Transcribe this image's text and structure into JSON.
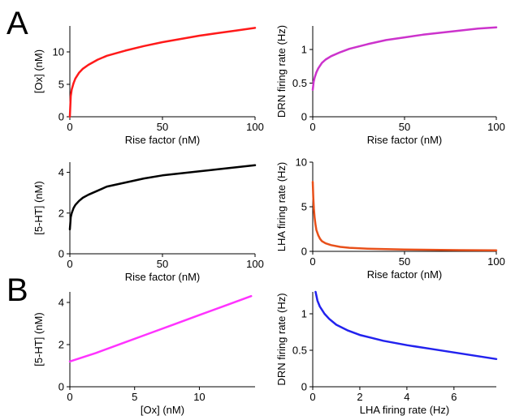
{
  "panel_labels": {
    "a": "A",
    "b": "B"
  },
  "chart_data": [
    {
      "type": "line",
      "panel": "A",
      "xlabel": "Rise factor (nM)",
      "ylabel": "[Ox] (nM)",
      "xlim": [
        0,
        100
      ],
      "ylim": [
        0,
        14
      ],
      "xticks": [
        0,
        50,
        100
      ],
      "yticks": [
        0,
        5,
        10
      ],
      "color": "#ff1a1a",
      "series": [
        {
          "x": [
            0,
            0.5,
            1,
            2,
            3,
            5,
            7,
            10,
            15,
            20,
            30,
            40,
            50,
            60,
            70,
            80,
            90,
            100
          ],
          "y": [
            0,
            3.2,
            4.2,
            5.2,
            5.9,
            6.8,
            7.4,
            8.0,
            8.8,
            9.4,
            10.2,
            10.9,
            11.5,
            12.0,
            12.5,
            12.9,
            13.3,
            13.7
          ]
        }
      ]
    },
    {
      "type": "line",
      "panel": "A",
      "xlabel": "Rise factor (nM)",
      "ylabel": "DRN firing rate (Hz)",
      "xlim": [
        0,
        100
      ],
      "ylim": [
        0,
        1.35
      ],
      "xticks": [
        0,
        50,
        100
      ],
      "yticks": [
        0,
        0.5,
        1
      ],
      "color": "#cc33cc",
      "series": [
        {
          "x": [
            0,
            0.5,
            1,
            2,
            3,
            5,
            7,
            10,
            15,
            20,
            30,
            40,
            50,
            60,
            70,
            80,
            90,
            100
          ],
          "y": [
            0.4,
            0.52,
            0.58,
            0.66,
            0.72,
            0.8,
            0.85,
            0.9,
            0.96,
            1.01,
            1.08,
            1.14,
            1.18,
            1.22,
            1.25,
            1.28,
            1.31,
            1.33
          ]
        }
      ]
    },
    {
      "type": "line",
      "panel": "A",
      "xlabel": "Rise factor (nM)",
      "ylabel": "[5-HT] (nM)",
      "xlim": [
        0,
        100
      ],
      "ylim": [
        0,
        4.5
      ],
      "xticks": [
        0,
        50,
        100
      ],
      "yticks": [
        0,
        2,
        4
      ],
      "color": "#000000",
      "series": [
        {
          "x": [
            0,
            0.5,
            1,
            2,
            3,
            5,
            7,
            10,
            15,
            20,
            30,
            40,
            50,
            60,
            70,
            80,
            90,
            100
          ],
          "y": [
            1.2,
            1.8,
            2.0,
            2.25,
            2.4,
            2.6,
            2.75,
            2.9,
            3.1,
            3.3,
            3.5,
            3.7,
            3.85,
            3.95,
            4.05,
            4.15,
            4.25,
            4.35
          ]
        }
      ]
    },
    {
      "type": "line",
      "panel": "A",
      "xlabel": "Rise factor (nM)",
      "ylabel": "LHA firing rate (Hz)",
      "xlim": [
        0,
        100
      ],
      "ylim": [
        0,
        10
      ],
      "xticks": [
        0,
        50,
        100
      ],
      "yticks": [
        0,
        5,
        10
      ],
      "color": "#e8501a",
      "series": [
        {
          "x": [
            0,
            0.3,
            0.6,
            1,
            1.5,
            2,
            3,
            4,
            5,
            7,
            10,
            15,
            20,
            30,
            40,
            50,
            60,
            70,
            80,
            90,
            100
          ],
          "y": [
            7.8,
            6.0,
            4.8,
            3.8,
            3.0,
            2.4,
            1.8,
            1.4,
            1.15,
            0.9,
            0.7,
            0.5,
            0.4,
            0.3,
            0.25,
            0.2,
            0.18,
            0.16,
            0.14,
            0.13,
            0.12
          ]
        }
      ]
    },
    {
      "type": "line",
      "panel": "B",
      "xlabel": "[Ox] (nM)",
      "ylabel": "[5-HT] (nM)",
      "xlim": [
        0,
        14.3
      ],
      "ylim": [
        0,
        4.5
      ],
      "xticks": [
        0,
        5,
        10
      ],
      "yticks": [
        0,
        2,
        4
      ],
      "color": "#ff33ff",
      "series": [
        {
          "x": [
            0,
            2,
            4,
            6,
            8,
            10,
            12,
            14
          ],
          "y": [
            1.2,
            1.6,
            2.05,
            2.5,
            2.95,
            3.4,
            3.85,
            4.3
          ]
        }
      ]
    },
    {
      "type": "line",
      "panel": "B",
      "xlabel": "LHA firing rate (Hz)",
      "ylabel": "DRN firing rate (Hz)",
      "xlim": [
        0,
        7.8
      ],
      "ylim": [
        0,
        1.3
      ],
      "xticks": [
        0,
        2,
        4,
        6
      ],
      "yticks": [
        0,
        0.5,
        1
      ],
      "color": "#2222ee",
      "series": [
        {
          "x": [
            0.12,
            0.2,
            0.3,
            0.5,
            0.7,
            1,
            1.5,
            2,
            2.5,
            3,
            4,
            5,
            6,
            7,
            7.8
          ],
          "y": [
            1.3,
            1.18,
            1.1,
            1.0,
            0.93,
            0.85,
            0.77,
            0.71,
            0.67,
            0.63,
            0.57,
            0.52,
            0.47,
            0.42,
            0.38
          ]
        }
      ]
    }
  ]
}
